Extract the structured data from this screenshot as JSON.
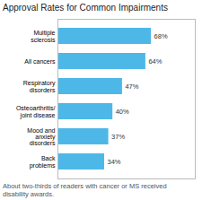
{
  "chart_data": {
    "type": "bar",
    "orientation": "horizontal",
    "title": "Approval Rates for Common Impairments",
    "categories": [
      "Multiple\nsclerosis",
      "All cancers",
      "Respiratory\ndisorders",
      "Osteoarthritis/\njoint disease",
      "Mood and\nanxiety\ndisorders",
      "Back\nproblems"
    ],
    "values": [
      68,
      64,
      47,
      40,
      37,
      34
    ],
    "value_labels": [
      "68%",
      "64%",
      "47%",
      "40%",
      "37%",
      "34%"
    ],
    "data_labels": true,
    "color": "#4db8e8",
    "xlim": [
      0,
      100
    ],
    "grid": false,
    "tick_labels": "y",
    "annotations": [
      "About two-thirds of readers with cancer or MS received\ndisability awards."
    ]
  }
}
